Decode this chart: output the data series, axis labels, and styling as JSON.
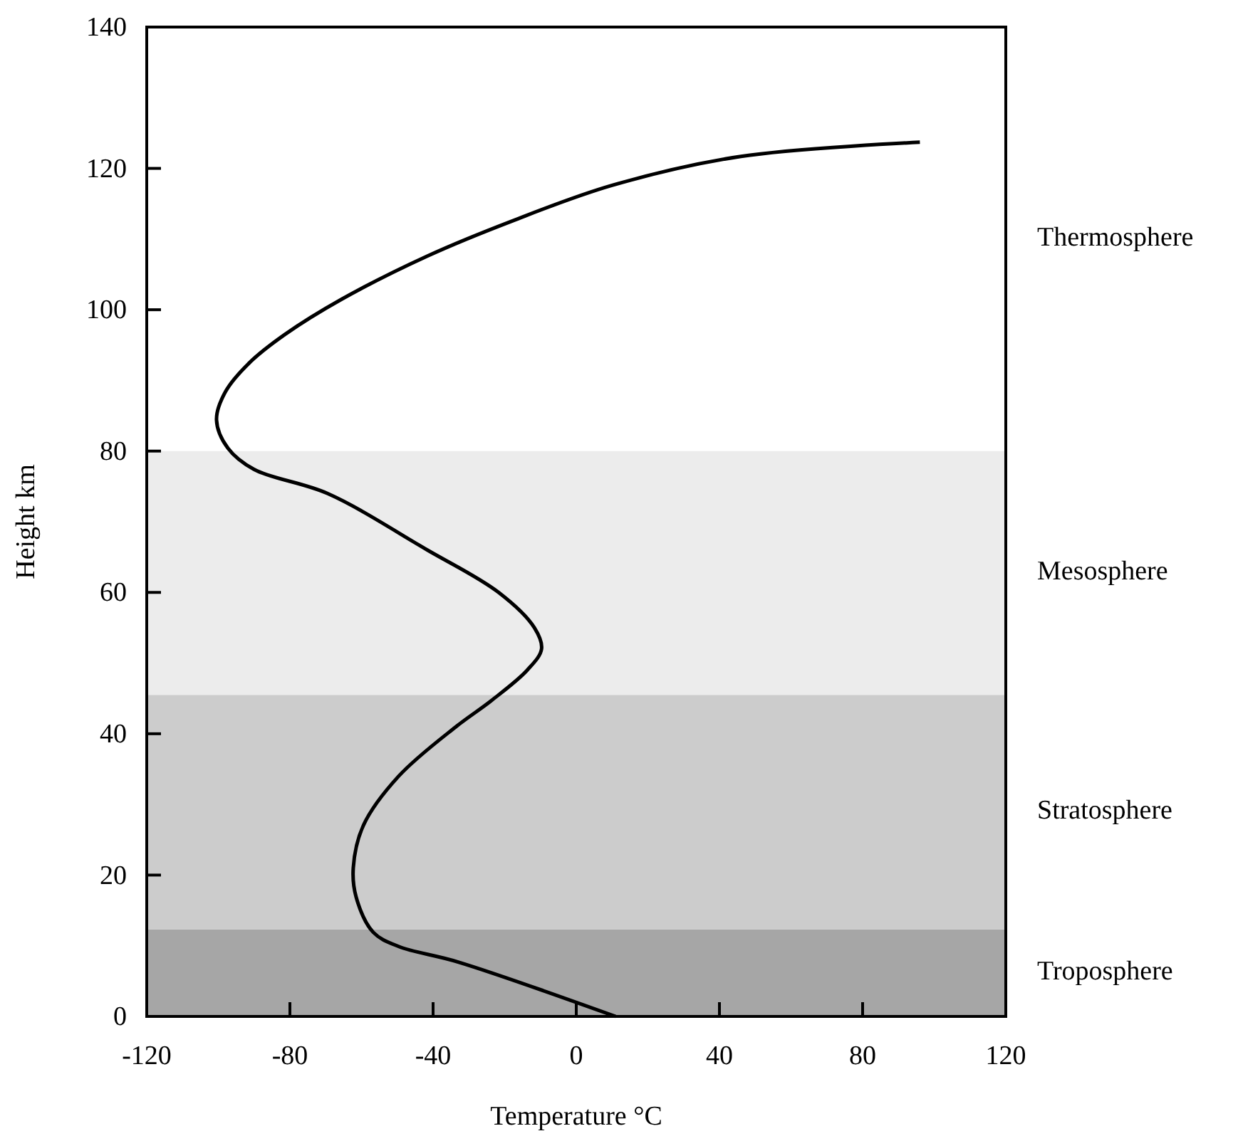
{
  "chart_data": {
    "type": "line",
    "xlabel": "Temperature °C",
    "ylabel": "Height km",
    "xlim": [
      -120,
      120
    ],
    "xticks": [
      -120,
      -80,
      -40,
      0,
      40,
      80,
      120
    ],
    "ylim": [
      0,
      140
    ],
    "yticks": [
      0,
      20,
      40,
      60,
      80,
      100,
      120,
      140
    ],
    "grid": false,
    "marker": "none",
    "line_style": "solid",
    "annotations": [
      "Thermosphere"
    ],
    "series": [
      {
        "color": "#000000",
        "x": [
          11,
          -33,
          -49.6,
          -56.7,
          -61.5,
          -62.3,
          -59.5,
          -49.6,
          -33.6,
          -23.7,
          -13.7,
          -9.7,
          -11.7,
          -21.7,
          -41.6,
          -69.5,
          -90,
          -97.3,
          -100.5,
          -98,
          -91.3,
          -81.4,
          -65.5,
          -41.6,
          -17.7,
          10,
          46,
          96
        ],
        "values": [
          0,
          7.7,
          9.9,
          11.9,
          16.9,
          21,
          27,
          34,
          41,
          44.7,
          49,
          52,
          55,
          60,
          66,
          74,
          77.4,
          80.4,
          84.4,
          88.4,
          92.5,
          96.5,
          101.5,
          107.6,
          112.6,
          117.6,
          121.7,
          123.7
        ]
      }
    ],
    "bands": [
      {
        "axis": "y",
        "from": 0,
        "to": 12.3,
        "label": "Troposphere",
        "color": "#a6a6a6"
      },
      {
        "axis": "y",
        "from": 12.3,
        "to": 45.5,
        "label": "Stratosphere",
        "color": "#cccccc"
      },
      {
        "axis": "y",
        "from": 45.5,
        "to": 80,
        "label": "Mesosphere",
        "color": "#ececec"
      }
    ]
  }
}
